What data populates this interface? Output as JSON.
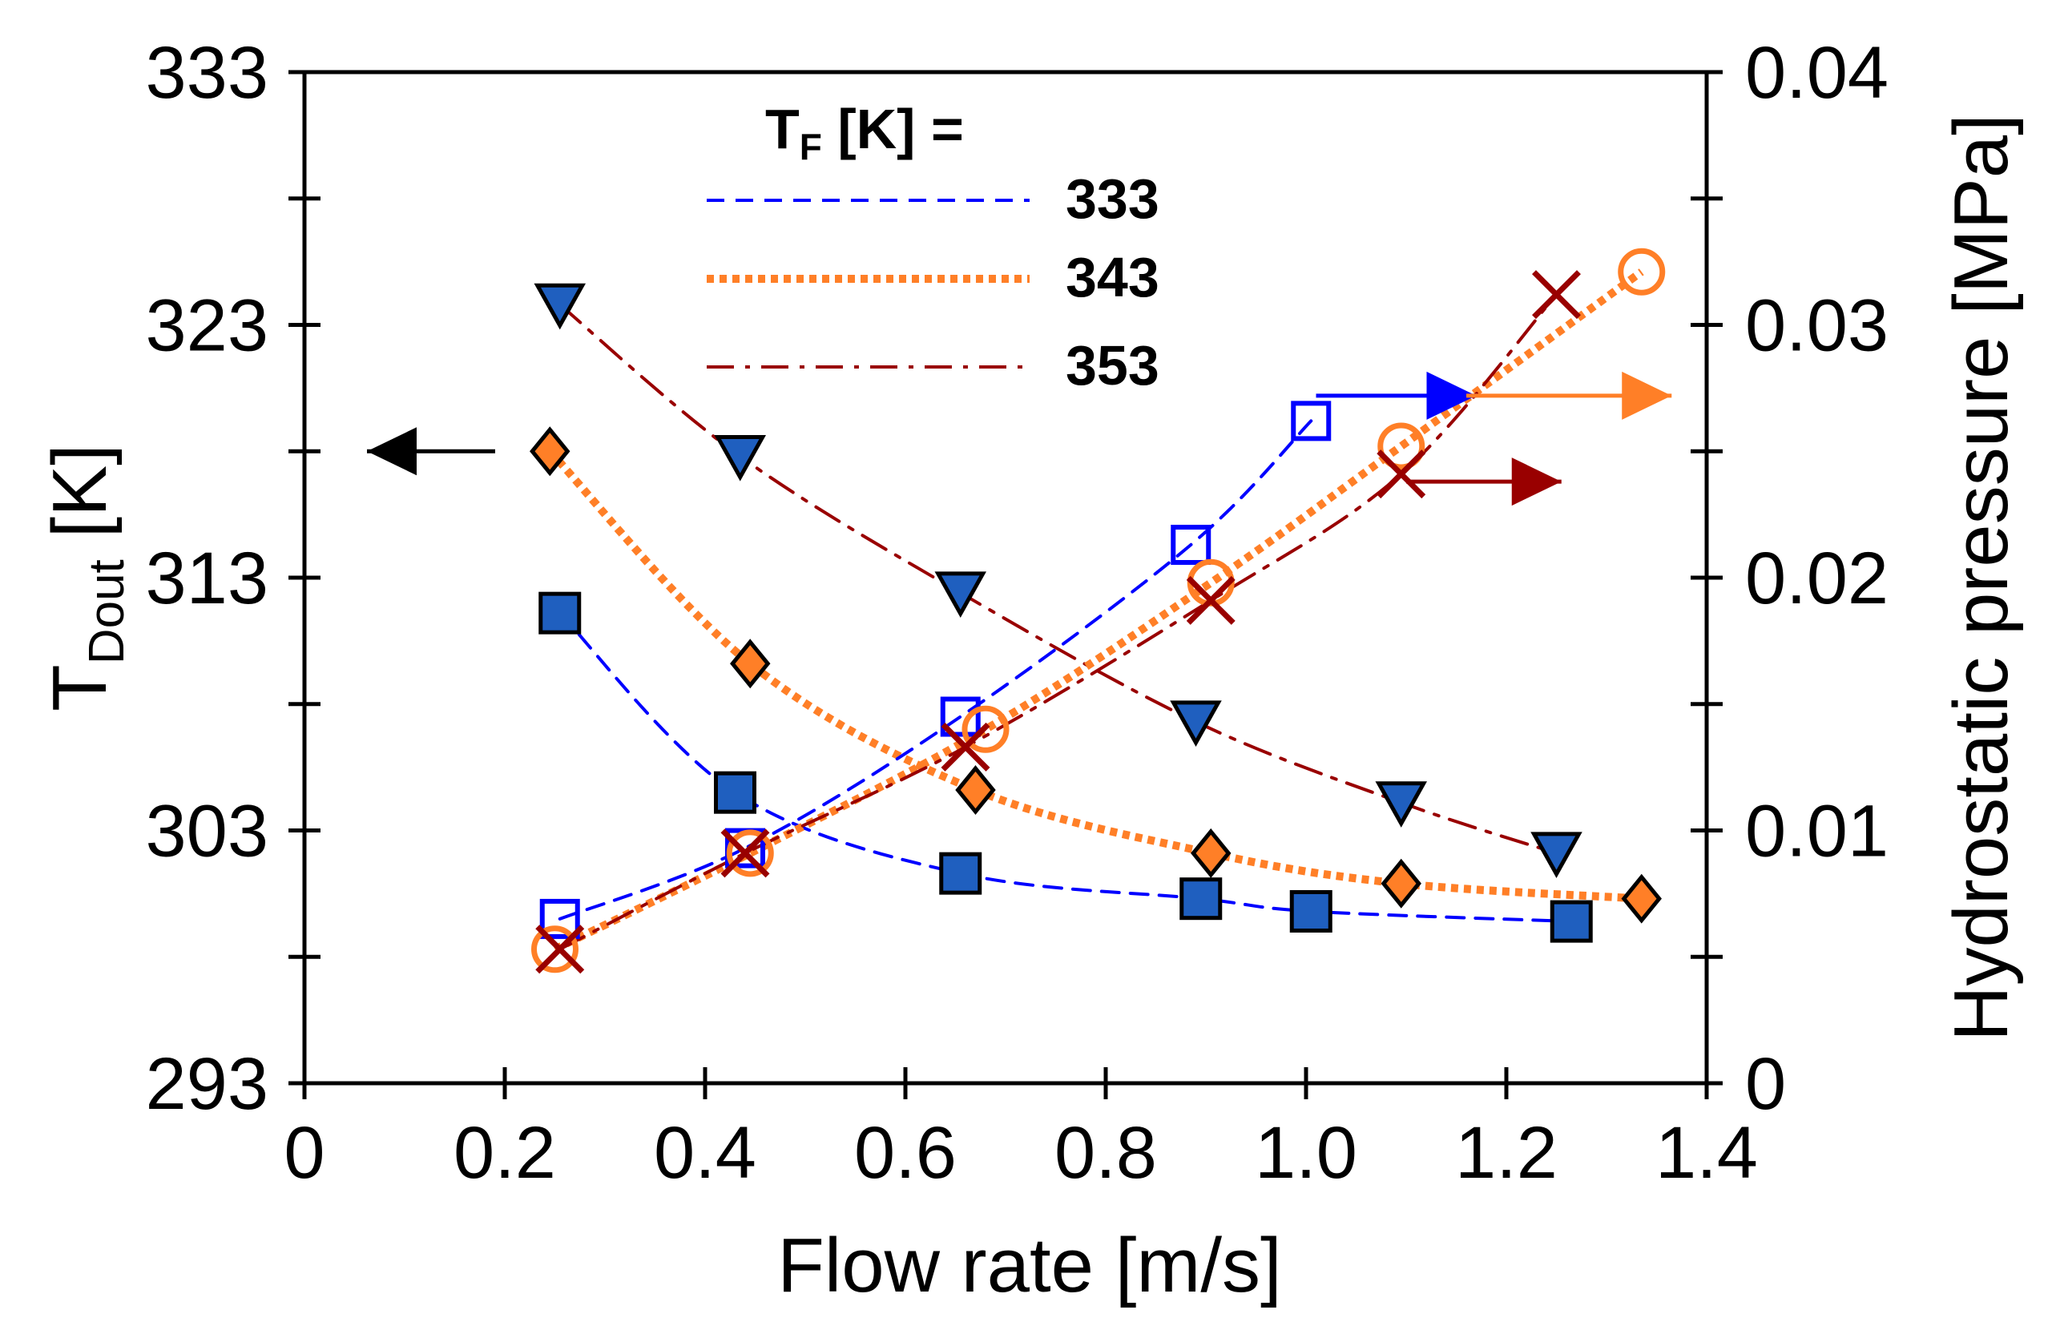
{
  "chart_data": {
    "type": "scatter",
    "title": "",
    "xlabel": "Flow rate [m/s]",
    "ylabel_left": {
      "main": "T",
      "sub": "Dout",
      "unit": " [K]"
    },
    "ylabel_right": "Hydrostatic pressure [MPa]",
    "xlim": [
      0,
      1.4
    ],
    "ylim_left": [
      293,
      333
    ],
    "ylim_right": [
      0,
      0.04
    ],
    "x_ticks": [
      "0",
      "0.2",
      "0.4",
      "0.6",
      "0.8",
      "1.0",
      "1.2",
      "1.4"
    ],
    "y_left_ticks": [
      "293",
      "303",
      "313",
      "323",
      "333"
    ],
    "y_right_ticks": [
      "0",
      "0.01",
      "0.02",
      "0.03",
      "0.04"
    ],
    "legend": {
      "title_main": "T",
      "title_sub": "F",
      "title_rest": " [K] =",
      "entries": [
        {
          "label": "333",
          "color": "#0000ff",
          "style": "dashed"
        },
        {
          "label": "343",
          "color": "#ff7f27",
          "style": "dotted"
        },
        {
          "label": "353",
          "color": "#990000",
          "style": "dashdot"
        }
      ]
    },
    "series": [
      {
        "name": "333 K T_Dout",
        "axis": "left",
        "marker": "filled-square",
        "color": "#1f5fbf",
        "line_color": "#0000ff",
        "x": [
          0.255,
          0.43,
          0.655,
          0.895,
          1.005,
          1.265
        ],
        "y": [
          311.6,
          304.5,
          301.3,
          300.3,
          299.8,
          299.4
        ]
      },
      {
        "name": "343 K T_Dout",
        "axis": "left",
        "marker": "filled-diamond",
        "color": "#ff7f27",
        "line_color": "#ff7f27",
        "x": [
          0.245,
          0.445,
          0.67,
          0.905,
          1.095,
          1.335
        ],
        "y": [
          318.0,
          309.6,
          304.6,
          302.1,
          300.9,
          300.3
        ]
      },
      {
        "name": "353 K T_Dout",
        "axis": "left",
        "marker": "filled-triangle-down",
        "color": "#1f5fbf",
        "line_color": "#990000",
        "x": [
          0.255,
          0.435,
          0.655,
          0.89,
          1.095,
          1.25
        ],
        "y": [
          323.8,
          317.8,
          312.4,
          307.3,
          304.1,
          302.1
        ]
      },
      {
        "name": "333 K pressure",
        "axis": "right",
        "marker": "open-square",
        "color": "#0000ff",
        "line_color": "#0000ff",
        "x": [
          0.255,
          0.44,
          0.655,
          0.885,
          1.005
        ],
        "y": [
          0.0065,
          0.0093,
          0.0145,
          0.0213,
          0.0262
        ]
      },
      {
        "name": "343 K pressure",
        "axis": "right",
        "marker": "open-circle",
        "color": "#ff7f27",
        "line_color": "#ff7f27",
        "x": [
          0.25,
          0.445,
          0.68,
          0.905,
          1.095,
          1.335
        ],
        "y": [
          0.0053,
          0.0091,
          0.014,
          0.0198,
          0.0252,
          0.0321
        ]
      },
      {
        "name": "353 K pressure",
        "axis": "right",
        "marker": "cross",
        "color": "#990000",
        "line_color": "#990000",
        "x": [
          0.255,
          0.44,
          0.66,
          0.905,
          1.095,
          1.25
        ],
        "y": [
          0.0053,
          0.0091,
          0.0133,
          0.0191,
          0.0241,
          0.0312
        ]
      }
    ],
    "annotations": [
      {
        "type": "arrow",
        "direction": "left",
        "points_to": "left axis",
        "color": "#000000"
      },
      {
        "type": "arrow",
        "direction": "right",
        "points_to": "right axis",
        "series": "333 K pressure",
        "color": "#0000ff"
      },
      {
        "type": "arrow",
        "direction": "right",
        "points_to": "right axis",
        "series": "343 K pressure",
        "color": "#ff7f27"
      },
      {
        "type": "arrow",
        "direction": "right",
        "points_to": "right axis",
        "series": "353 K pressure",
        "color": "#990000"
      }
    ]
  }
}
